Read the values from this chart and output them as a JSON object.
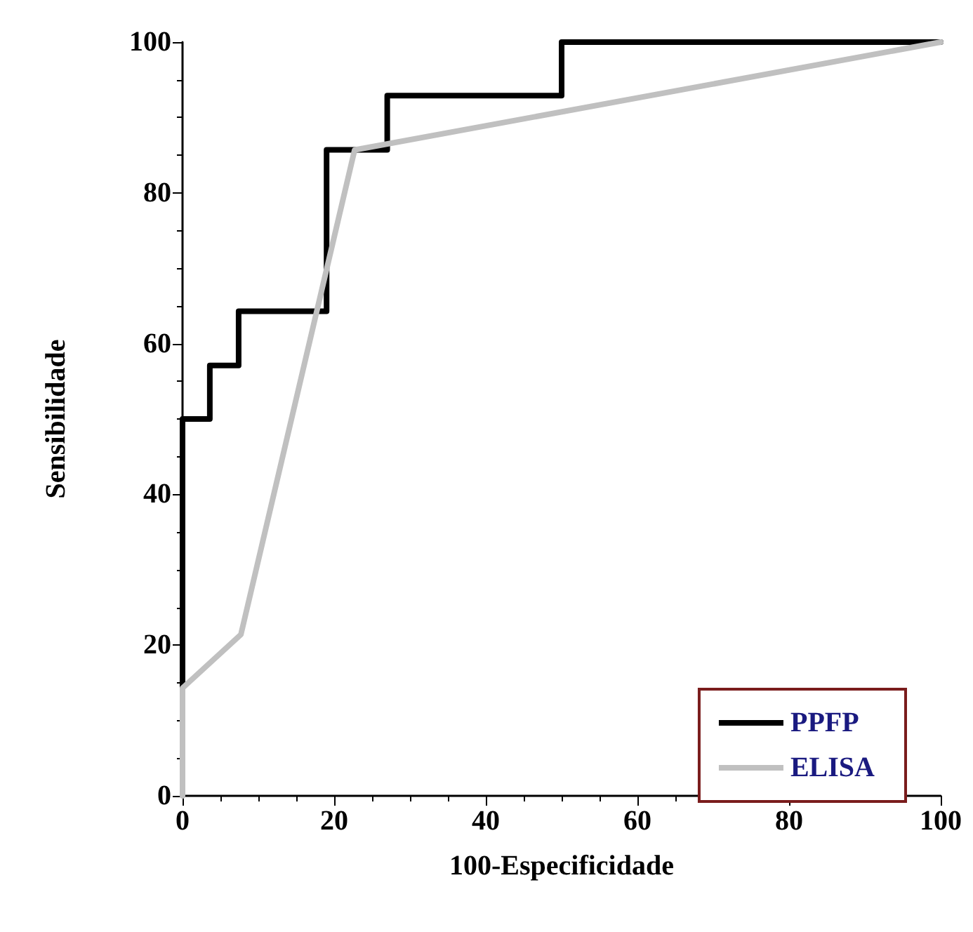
{
  "chart_data": {
    "type": "line",
    "xlabel": "100-Especificidade",
    "ylabel": "Sensibilidade",
    "xlim": [
      0,
      100
    ],
    "ylim": [
      0,
      100
    ],
    "xticks": [
      0,
      20,
      40,
      60,
      80,
      100
    ],
    "yticks": [
      0,
      20,
      40,
      60,
      80,
      100
    ],
    "grid": false,
    "legend": "bottom right",
    "marker": "none",
    "line_style": "solid",
    "series": [
      {
        "name": "PPFP",
        "color": "#000000",
        "x": [
          0,
          0,
          3.6,
          3.6,
          7.4,
          7.4,
          19,
          19,
          27,
          27,
          50,
          50,
          100
        ],
        "values": [
          14.3,
          50,
          50,
          57.1,
          57.1,
          64.3,
          64.3,
          85.7,
          85.7,
          92.9,
          92.9,
          100,
          100
        ]
      },
      {
        "name": "ELISA",
        "color": "#c0c0c0",
        "x": [
          0,
          0,
          7.7,
          22.7,
          100
        ],
        "values": [
          0,
          14.3,
          21.4,
          85.7,
          100
        ]
      }
    ]
  }
}
